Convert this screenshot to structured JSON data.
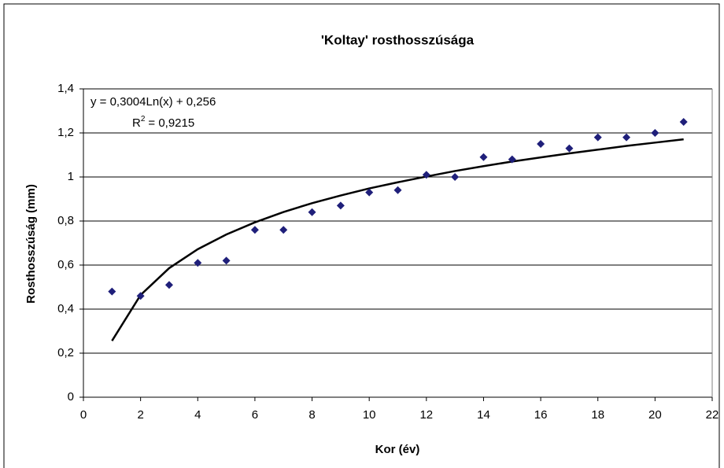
{
  "chart_data": {
    "type": "scatter",
    "title": "'Koltay' rosthosszúsága",
    "x_label": "Kor (év)",
    "y_label": "Rosthosszúság (mm)",
    "series": [
      {
        "color": "#1f1f7a",
        "x": [
          1,
          2,
          3,
          4,
          5,
          6,
          7,
          8,
          9,
          10,
          11,
          12,
          13,
          14,
          15,
          16,
          17,
          18,
          19,
          20,
          21
        ],
        "values": [
          0.48,
          0.46,
          0.51,
          0.61,
          0.62,
          0.76,
          0.76,
          0.84,
          0.87,
          0.93,
          0.94,
          1.01,
          1.0,
          1.09,
          1.08,
          1.15,
          1.13,
          1.18,
          1.18,
          1.2,
          1.25
        ]
      }
    ],
    "trendline": {
      "color": "#000000",
      "x": [
        1,
        2,
        3,
        4,
        5,
        6,
        7,
        8,
        9,
        10,
        11,
        12,
        13,
        14,
        15,
        16,
        17,
        18,
        19,
        20,
        21
      ],
      "values": [
        0.256,
        0.464,
        0.586,
        0.672,
        0.739,
        0.794,
        0.841,
        0.881,
        0.916,
        0.948,
        0.976,
        1.002,
        1.027,
        1.049,
        1.07,
        1.089,
        1.107,
        1.124,
        1.141,
        1.156,
        1.171
      ],
      "equation": "y = 0,3004Ln(x) + 0,256",
      "r2_symbol": "R",
      "r2_exponent": "2",
      "r2_text": "= 0,9215"
    },
    "xlim": [
      0,
      22
    ],
    "xticks": [
      0,
      2,
      4,
      6,
      8,
      10,
      12,
      14,
      16,
      18,
      20,
      22
    ],
    "ylim": [
      0,
      1.4
    ],
    "yticks": [
      0,
      {
        "value": 0.2,
        "label": "0,2"
      },
      {
        "value": 0.4,
        "label": "0,4"
      },
      {
        "value": 0.6,
        "label": "0,6"
      },
      {
        "value": 0.8,
        "label": "0,8"
      },
      1,
      {
        "value": 1.2,
        "label": "1,2"
      },
      {
        "value": 1.4,
        "label": "1,4"
      }
    ],
    "grid": true
  }
}
